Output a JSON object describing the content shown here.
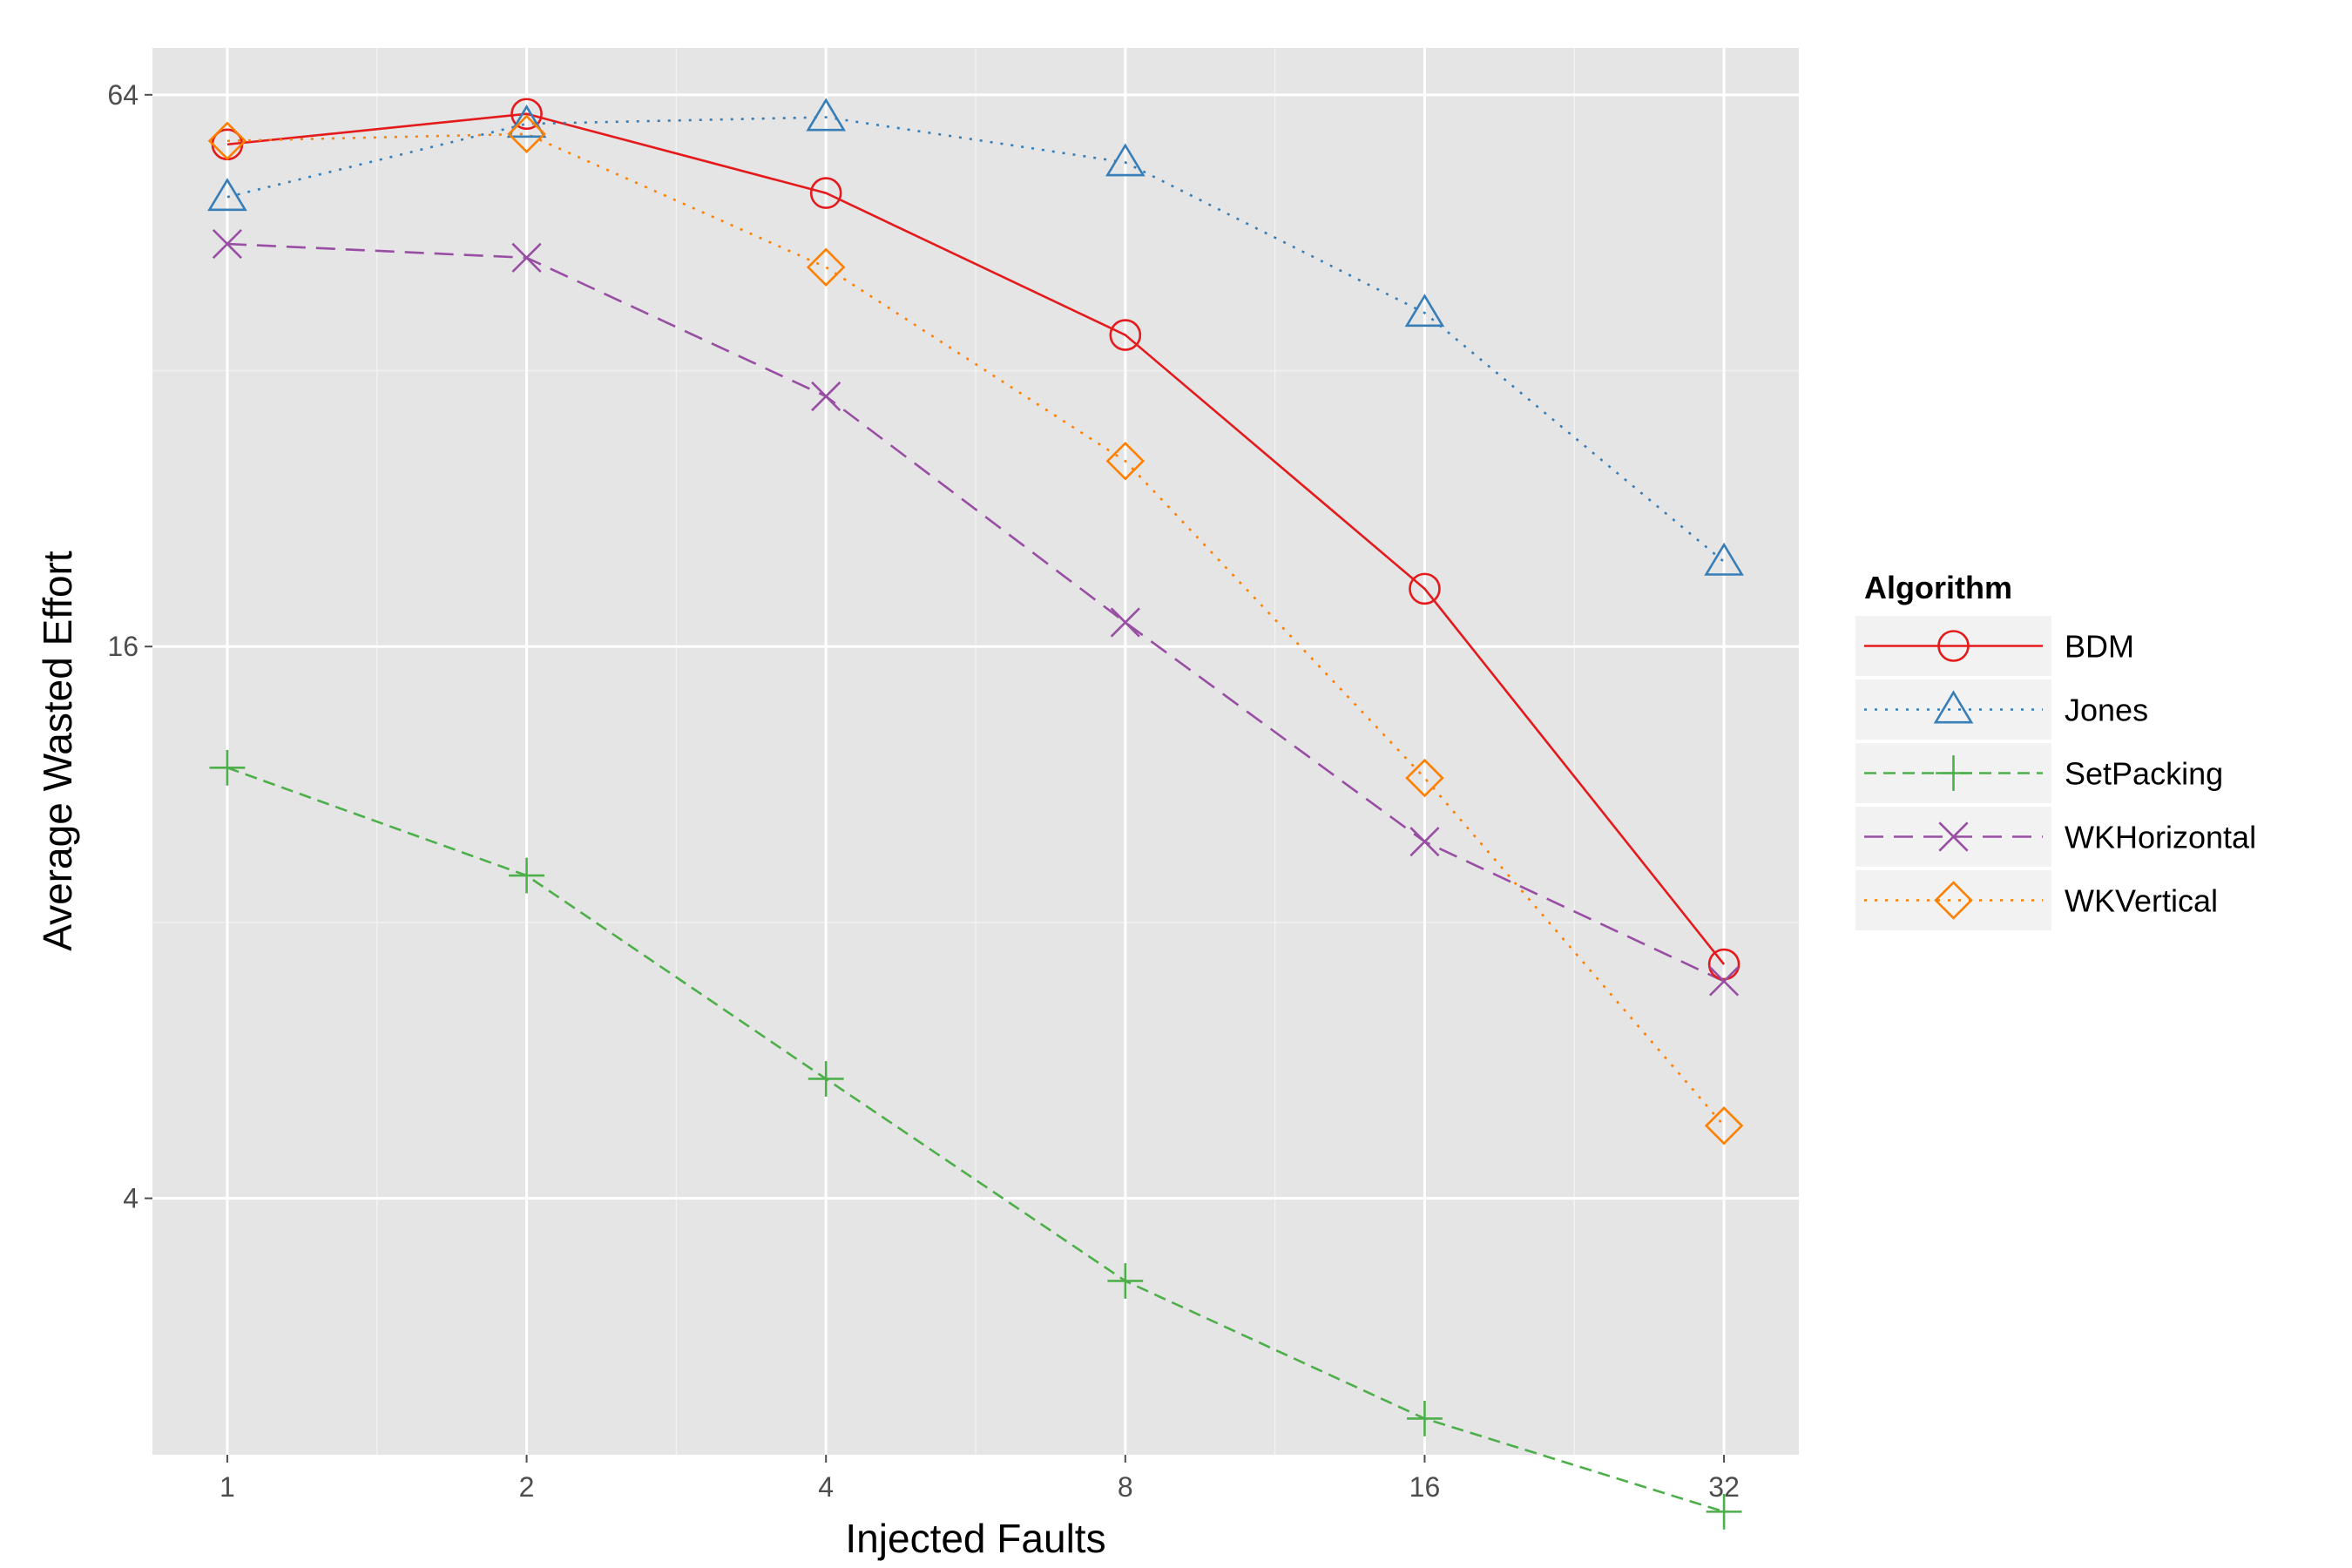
{
  "chart_data": {
    "type": "line",
    "xlabel": "Injected Faults",
    "ylabel": "Average Wasted Effort",
    "x_scale": "log2",
    "y_scale": "log2",
    "x": [
      1,
      2,
      4,
      8,
      16,
      32
    ],
    "x_tick_labels": [
      "1",
      "2",
      "4",
      "8",
      "16",
      "32"
    ],
    "y_ticks": [
      4,
      16,
      64
    ],
    "y_tick_labels": [
      "4",
      "16",
      "64"
    ],
    "ylim": [
      2.1,
      72
    ],
    "grid": true,
    "legend": {
      "title": "Algorithm",
      "placement": "right"
    },
    "series": [
      {
        "name": "BDM",
        "color": "#e41a1c",
        "dash": "solid",
        "marker": "circle",
        "values": [
          56.5,
          61.0,
          50.0,
          35.0,
          18.5,
          7.2
        ]
      },
      {
        "name": "Jones",
        "color": "#377eb8",
        "dash": "dotted",
        "marker": "triangle",
        "values": [
          49.5,
          59.5,
          60.5,
          54.0,
          37.0,
          19.8
        ]
      },
      {
        "name": "SetPacking",
        "color": "#4daf4a",
        "dash": "dashed",
        "marker": "plus",
        "values": [
          11.8,
          9.0,
          5.4,
          3.25,
          2.3,
          1.82
        ]
      },
      {
        "name": "WKHorizontal",
        "color": "#984ea3",
        "dash": "longdash",
        "marker": "cross",
        "values": [
          44.0,
          42.5,
          30.0,
          17.0,
          9.8,
          6.9
        ]
      },
      {
        "name": "WKVertical",
        "color": "#ff7f00",
        "dash": "dotted",
        "marker": "diamond",
        "values": [
          57.0,
          58.0,
          41.5,
          25.5,
          11.5,
          4.8
        ]
      }
    ]
  }
}
